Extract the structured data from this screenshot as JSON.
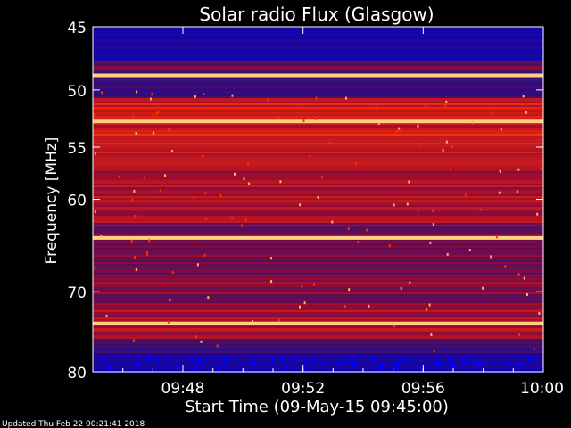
{
  "chart_data": {
    "type": "heatmap",
    "title": "Solar radio Flux (Glasgow)",
    "xlabel": "Start Time (09-May-15 09:45:00)",
    "ylabel_main": "Frequency ",
    "ylabel_unit": "[MHz]",
    "footer": "Updated Thu Feb 22 00:21:41 2018",
    "xlim": [
      "09:45",
      "10:00"
    ],
    "ylim": [
      45,
      80
    ],
    "y_scale": "log",
    "x_ticks": [
      {
        "t": "09:48",
        "label": "09:48"
      },
      {
        "t": "09:52",
        "label": "09:52"
      },
      {
        "t": "09:56",
        "label": "09:56"
      },
      {
        "t": "10:00",
        "label": "10:00"
      }
    ],
    "y_ticks": [
      {
        "f": 45,
        "label": "45"
      },
      {
        "f": 50,
        "label": "50"
      },
      {
        "f": 55,
        "label": "55"
      },
      {
        "f": 60,
        "label": "60"
      },
      {
        "f": 70,
        "label": "70"
      },
      {
        "f": 80,
        "label": "80"
      }
    ],
    "bright_lines_mhz": [
      48.8,
      52.7,
      64.0,
      73.8
    ],
    "colors": {
      "low": "#0000ff",
      "mid": "#8b1060",
      "high": "#ff2000",
      "peak": "#ffd080",
      "background": "#000000"
    }
  }
}
